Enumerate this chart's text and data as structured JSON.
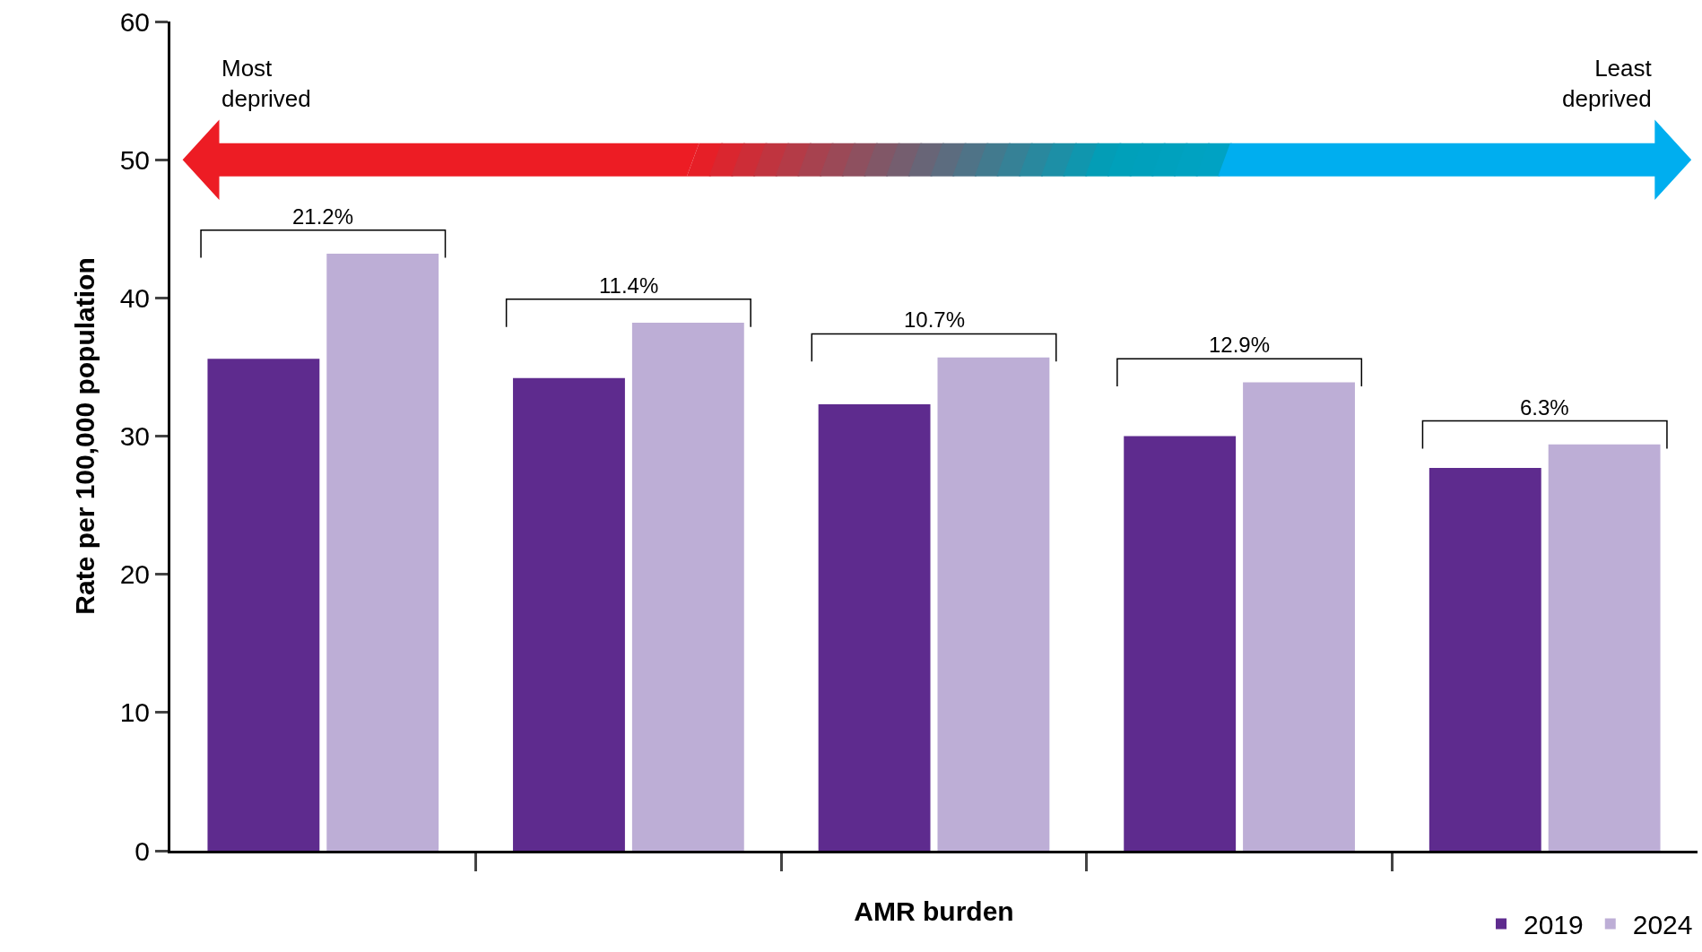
{
  "chart_data": {
    "type": "bar",
    "xlabel": "AMR burden",
    "ylabel": "Rate per 100,000 population",
    "categories": [
      null,
      null,
      null,
      null,
      null
    ],
    "series": [
      {
        "name": "2019",
        "color": "#5e2b8e",
        "values": [
          35.6,
          34.2,
          32.3,
          30.0,
          27.7
        ]
      },
      {
        "name": "2024",
        "color": "#bdaed6",
        "values": [
          43.2,
          38.2,
          35.7,
          33.9,
          29.4
        ]
      }
    ],
    "ylim": [
      0,
      60
    ],
    "yticks": [
      0,
      10,
      20,
      30,
      40,
      50,
      60
    ],
    "legend": "bottom right",
    "annotations": [
      "21.2%",
      "11.4%",
      "10.7%",
      "12.9%",
      "6.3%",
      "Most\ndeprived",
      "Least\ndeprived"
    ]
  }
}
